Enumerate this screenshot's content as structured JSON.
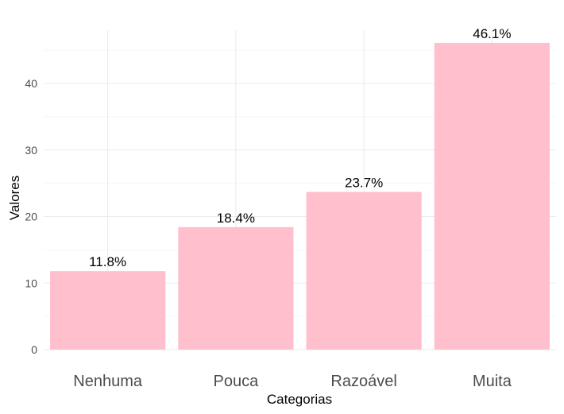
{
  "chart_data": {
    "type": "bar",
    "title": "",
    "xlabel": "Categorias",
    "ylabel": "Valores",
    "categories": [
      "Nenhuma",
      "Pouca",
      "Razoável",
      "Muita"
    ],
    "values": [
      11.8,
      18.4,
      23.7,
      46.1
    ],
    "value_labels": [
      "11.8%",
      "18.4%",
      "23.7%",
      "46.1%"
    ],
    "ylim": [
      0,
      48
    ],
    "yticks": [
      0,
      10,
      20,
      30,
      40
    ],
    "grid": true,
    "legend": "none",
    "colors": {
      "bar": "#FFBFCC",
      "grid_major": "#EBEBEB",
      "grid_minor": "#F3F3F3",
      "tick_text": "#4D4D4D"
    }
  }
}
